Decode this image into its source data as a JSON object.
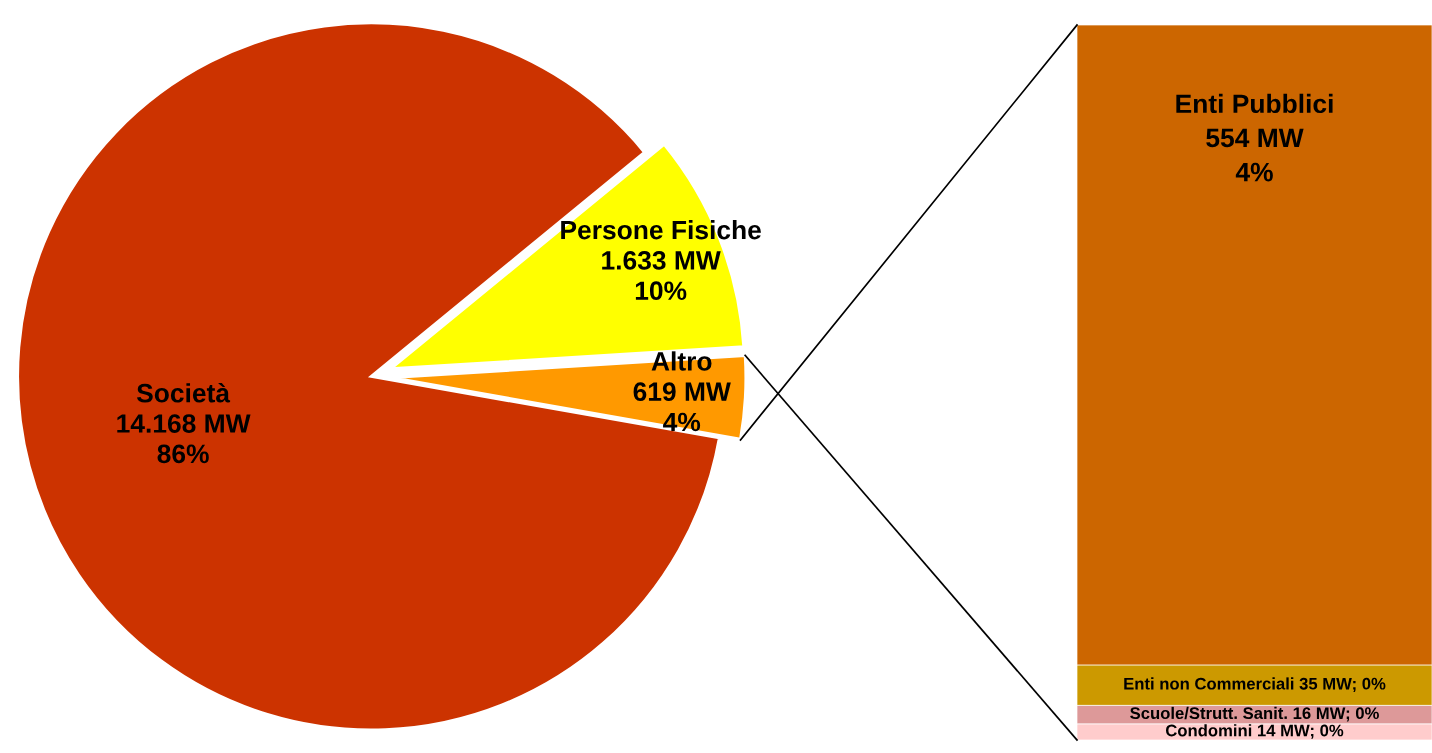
{
  "chart_data": [
    {
      "type": "pie",
      "categories": [
        "Società",
        "Persone Fisiche",
        "Altro"
      ],
      "values": [
        14168,
        1633,
        619
      ],
      "colors": [
        "#cc3300",
        "#ffff00",
        "#ff9900"
      ],
      "value_labels": [
        "14.168 MW\n86%",
        "1.633 MW\n10%",
        "619 MW\n4%"
      ]
    },
    {
      "type": "bar",
      "stacked": true,
      "categories": [
        null
      ],
      "series": [
        {
          "name": "Condomini",
          "color": "#ffcccc",
          "values": [
            14
          ],
          "value_labels": [
            "14 MW; 0%"
          ]
        },
        {
          "name": "Scuole/Strutt. Sanit.",
          "color": "#dd9999",
          "values": [
            16
          ],
          "value_labels": [
            "16 MW; 0%"
          ]
        },
        {
          "name": "Enti non Commerciali",
          "color": "#cc9900",
          "values": [
            35
          ],
          "value_labels": [
            "35 MW; 0%"
          ]
        },
        {
          "name": "Enti Pubblici",
          "color": "#cc6600",
          "values": [
            554
          ],
          "value_labels": [
            "554 MW\n4%"
          ]
        }
      ]
    }
  ]
}
